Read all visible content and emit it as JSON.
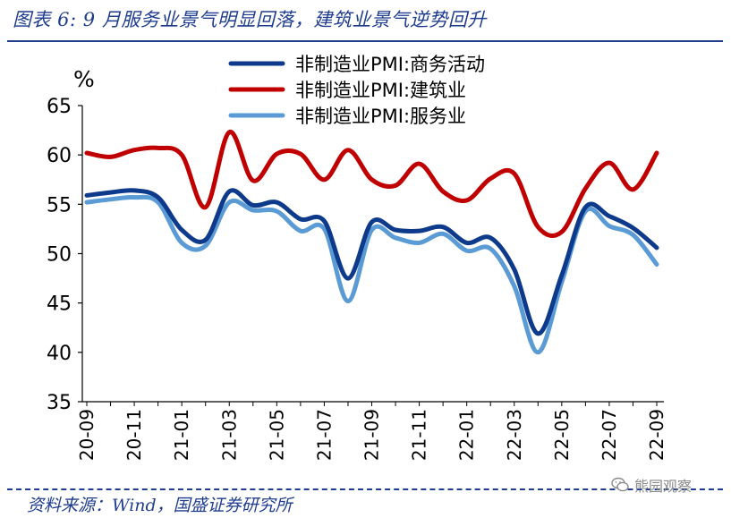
{
  "header": {
    "title": "图表 6:  9 月服务业景气明显回落，建筑业景气逆势回升"
  },
  "footer": {
    "source": "资料来源：Wind，国盛证券研究所",
    "watermark": "熊园观察"
  },
  "colors": {
    "commercial": "#0e3a8c",
    "construction": "#c00000",
    "services": "#5b9bd5",
    "brand": "#1f3d8f"
  },
  "chart_data": {
    "type": "line",
    "unit_label": "%",
    "ylim": [
      35,
      65
    ],
    "yticks": [
      35,
      40,
      45,
      50,
      55,
      60,
      65
    ],
    "grid": false,
    "legend_position": "top-center",
    "x": [
      "20-09",
      "20-10",
      "20-11",
      "20-12",
      "21-01",
      "21-02",
      "21-03",
      "21-04",
      "21-05",
      "21-06",
      "21-07",
      "21-08",
      "21-09",
      "21-10",
      "21-11",
      "21-12",
      "22-01",
      "22-02",
      "22-03",
      "22-04",
      "22-05",
      "22-06",
      "22-07",
      "22-08",
      "22-09"
    ],
    "xtick_labels": [
      "20-09",
      "20-11",
      "21-01",
      "21-03",
      "21-05",
      "21-07",
      "21-09",
      "21-11",
      "22-01",
      "22-03",
      "22-05",
      "22-07",
      "22-09"
    ],
    "series": [
      {
        "name": "非制造业PMI:商务活动",
        "color_key": "commercial",
        "values": [
          55.9,
          56.2,
          56.4,
          55.7,
          52.4,
          51.4,
          56.3,
          54.9,
          55.2,
          53.5,
          53.3,
          47.5,
          53.2,
          52.4,
          52.3,
          52.7,
          51.1,
          51.6,
          48.4,
          41.9,
          47.8,
          54.7,
          53.8,
          52.6,
          50.6
        ]
      },
      {
        "name": "非制造业PMI:建筑业",
        "color_key": "construction",
        "values": [
          60.2,
          59.8,
          60.5,
          60.7,
          60.0,
          54.7,
          62.3,
          57.4,
          60.1,
          60.1,
          57.5,
          60.5,
          57.5,
          56.9,
          59.1,
          56.3,
          55.4,
          57.6,
          58.1,
          52.7,
          52.2,
          56.6,
          59.2,
          56.5,
          60.2
        ]
      },
      {
        "name": "非制造业PMI:服务业",
        "color_key": "services",
        "values": [
          55.2,
          55.5,
          55.7,
          55.2,
          51.1,
          50.8,
          55.2,
          54.4,
          54.3,
          52.3,
          52.5,
          45.2,
          52.4,
          51.6,
          51.1,
          52.0,
          50.3,
          50.5,
          46.7,
          40.0,
          47.1,
          54.3,
          52.8,
          51.9,
          48.9
        ]
      }
    ]
  }
}
